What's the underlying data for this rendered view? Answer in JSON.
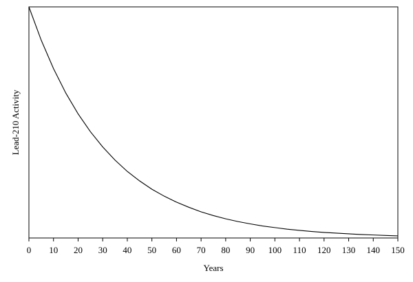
{
  "chart_data": {
    "type": "line",
    "xlabel": "Years",
    "ylabel": "Lead-210 Activity",
    "xlim": [
      0,
      150
    ],
    "x_ticks": [
      0,
      10,
      20,
      30,
      40,
      50,
      60,
      70,
      80,
      90,
      100,
      110,
      120,
      130,
      140,
      150
    ],
    "x_tick_labels": [
      "0",
      "10",
      "20",
      "30",
      "40",
      "50",
      "60",
      "70",
      "80",
      "90",
      "100",
      "110",
      "120",
      "130",
      "140",
      "150"
    ],
    "y_ticks_shown": false,
    "grid": false,
    "legend": "none",
    "ylim": [
      0,
      1
    ],
    "series": [
      {
        "x": [
          0,
          5,
          10,
          15,
          20,
          25,
          30,
          35,
          40,
          45,
          50,
          55,
          60,
          65,
          70,
          75,
          80,
          85,
          90,
          95,
          100,
          105,
          110,
          115,
          120,
          125,
          130,
          135,
          140,
          145,
          150
        ],
        "values": [
          1.0,
          0.856,
          0.733,
          0.627,
          0.537,
          0.46,
          0.394,
          0.337,
          0.288,
          0.247,
          0.211,
          0.181,
          0.155,
          0.133,
          0.113,
          0.097,
          0.083,
          0.071,
          0.061,
          0.052,
          0.045,
          0.038,
          0.033,
          0.028,
          0.024,
          0.021,
          0.018,
          0.015,
          0.013,
          0.011,
          0.009
        ]
      }
    ],
    "colors": {
      "line": "#000000",
      "frame": "#000000",
      "background": "#ffffff"
    }
  }
}
